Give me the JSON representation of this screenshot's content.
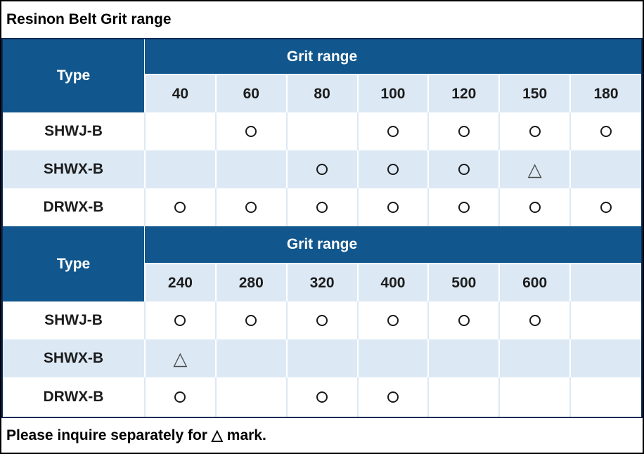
{
  "title": "Resinon Belt Grit range",
  "footer": "Please inquire separately for △ mark.",
  "marks": {
    "circle": "○",
    "triangle": "△"
  },
  "colors": {
    "header_blue": "#11568C",
    "light_blue": "#DCE9F5",
    "navy_border": "#0D2B57",
    "outer_border": "#000000",
    "circle_mark": "#1A1A1A",
    "triangle_mark": "#4A4A4A"
  },
  "tables": [
    {
      "type_header": "Type",
      "group_header": "Grit range",
      "columns": [
        "40",
        "60",
        "80",
        "100",
        "120",
        "150",
        "180"
      ],
      "rows": [
        {
          "label": "SHWJ-B",
          "cells": [
            "",
            "○",
            "",
            "○",
            "○",
            "○",
            "○"
          ]
        },
        {
          "label": "SHWX-B",
          "cells": [
            "",
            "",
            "○",
            "○",
            "○",
            "△",
            ""
          ]
        },
        {
          "label": "DRWX-B",
          "cells": [
            "○",
            "○",
            "○",
            "○",
            "○",
            "○",
            "○"
          ]
        }
      ]
    },
    {
      "type_header": "Type",
      "group_header": "Grit range",
      "columns": [
        "240",
        "280",
        "320",
        "400",
        "500",
        "600",
        ""
      ],
      "rows": [
        {
          "label": "SHWJ-B",
          "cells": [
            "○",
            "○",
            "○",
            "○",
            "○",
            "○",
            ""
          ]
        },
        {
          "label": "SHWX-B",
          "cells": [
            "△",
            "",
            "",
            "",
            "",
            "",
            ""
          ]
        },
        {
          "label": "DRWX-B",
          "cells": [
            "○",
            "",
            "○",
            "○",
            "",
            "",
            ""
          ]
        }
      ]
    }
  ]
}
